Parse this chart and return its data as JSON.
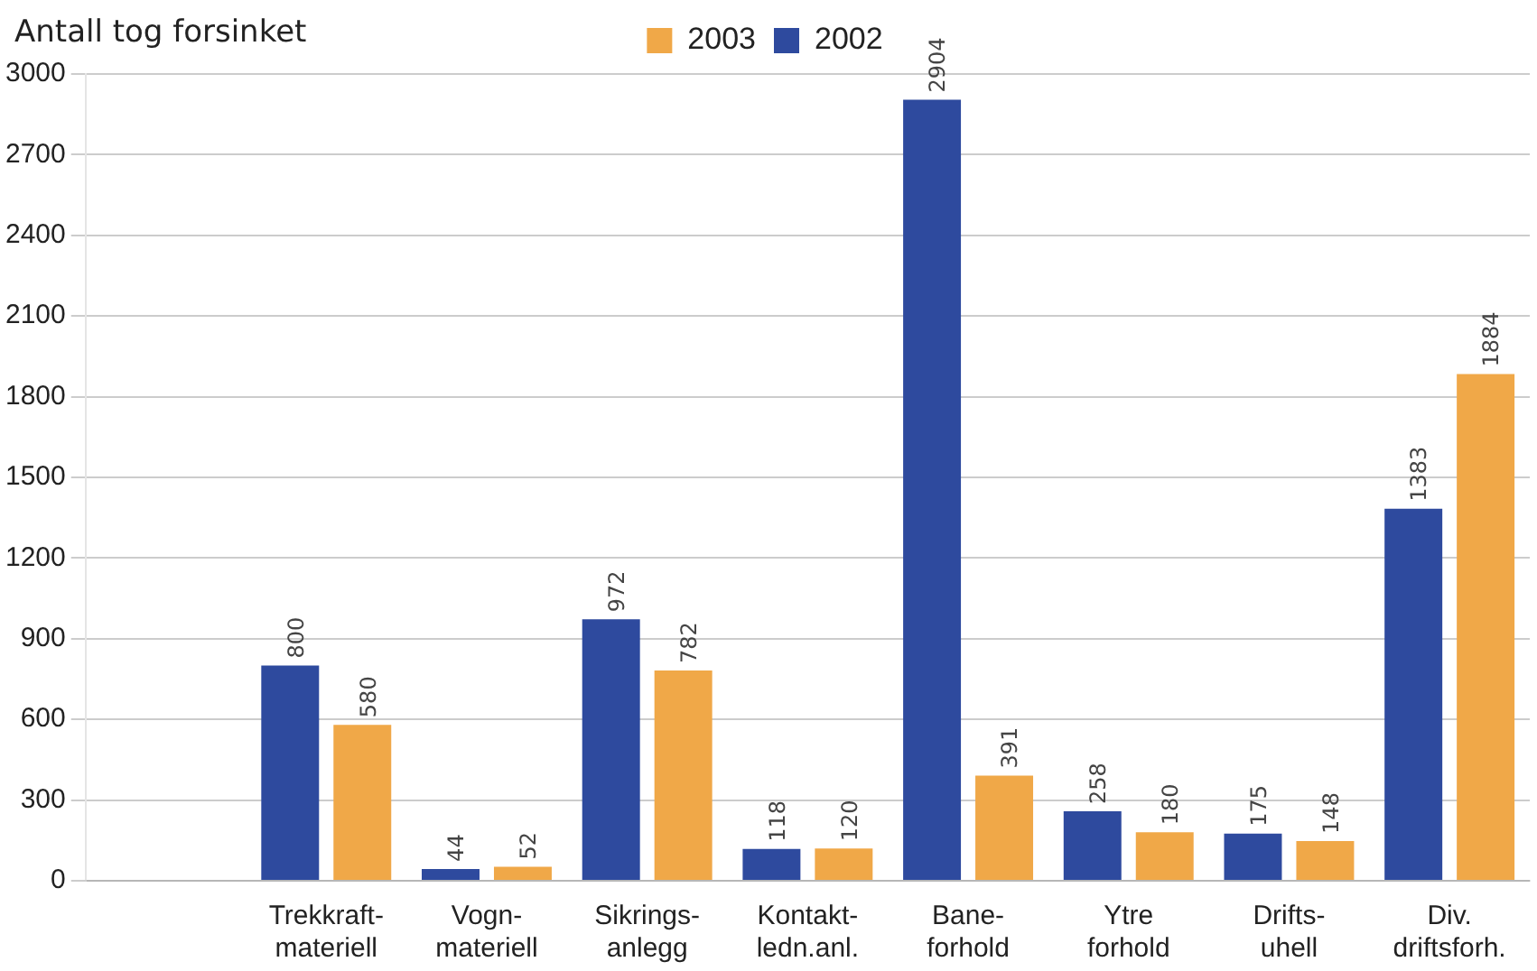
{
  "chart_data": {
    "type": "bar",
    "ylabel": "Antall tog forsinket",
    "categories": [
      null,
      "Trekkraft-\nmateriell",
      "Vogn-\nmateriell",
      "Sikrings-\nanlegg",
      "Kontakt-\nledn.anl.",
      "Bane-\nforhold",
      "Ytre\nforhold",
      "Drifts-\nuhell",
      "Div.\ndriftsforh."
    ],
    "series": [
      {
        "name": "2002",
        "color": "#2e4a9e",
        "values": [
          null,
          800,
          44,
          972,
          118,
          2904,
          258,
          175,
          1383
        ]
      },
      {
        "name": "2003",
        "color": "#f0a848",
        "values": [
          null,
          580,
          52,
          782,
          120,
          391,
          180,
          148,
          1884
        ]
      }
    ],
    "ylim": [
      0,
      3000
    ],
    "yticks": [
      0,
      300,
      600,
      900,
      1200,
      1500,
      1800,
      2100,
      2400,
      2700,
      3000
    ],
    "grid": "y",
    "legend": "top",
    "data_labels": true
  }
}
